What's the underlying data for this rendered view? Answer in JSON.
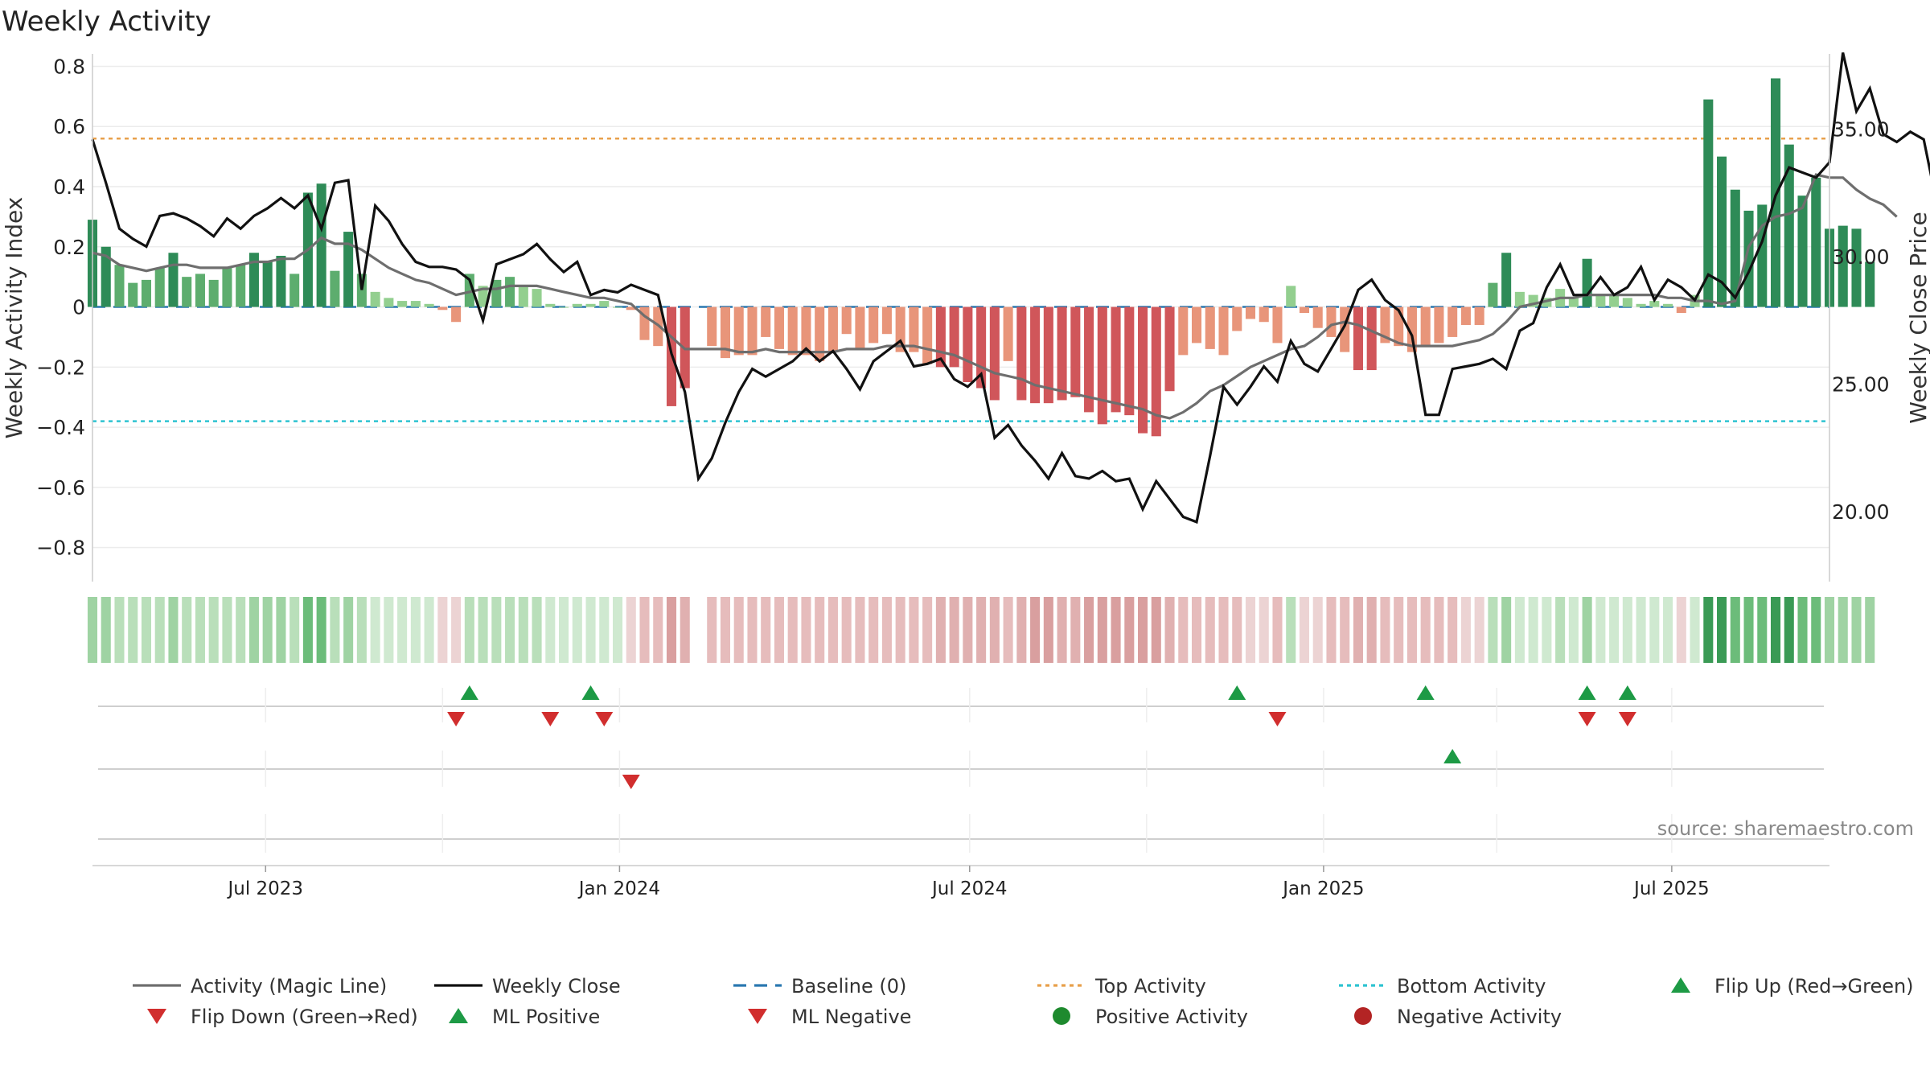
{
  "chart_data": {
    "type": "bar",
    "title": "Weekly Activity",
    "ylabel": "Weekly Activity Index",
    "y2label": "Weekly Close Price",
    "source": "source: sharemaestro.com",
    "ylim": [
      -0.9,
      0.82
    ],
    "y2lim": [
      17.42,
      37.7
    ],
    "yticks": [
      0.8,
      0.6,
      0.4,
      0.2,
      0,
      -0.2,
      -0.4,
      -0.6,
      -0.8
    ],
    "ytick_labels": [
      "0.8",
      "0.6",
      "0.4",
      "0.2",
      "0",
      "−0.2",
      "−0.4",
      "−0.6",
      "−0.8"
    ],
    "y2ticks": [
      35,
      30,
      25,
      20
    ],
    "y2tick_labels": [
      "35.00",
      "30.00",
      "25.00",
      "20.00"
    ],
    "x_start": "2023-04-02",
    "x_end": "2025-09-21",
    "xticks": [
      {
        "date": "2023-07-01",
        "label": "Jul 2023"
      },
      {
        "date": "2024-01-01",
        "label": "Jan 2024"
      },
      {
        "date": "2024-07-01",
        "label": "Jul 2024"
      },
      {
        "date": "2025-01-01",
        "label": "Jan 2025"
      },
      {
        "date": "2025-07-01",
        "label": "Jul 2025"
      }
    ],
    "weeks_start": "2023-04-02",
    "activity": [
      0.29,
      0.2,
      0.14,
      0.08,
      0.09,
      0.13,
      0.18,
      0.1,
      0.11,
      0.09,
      0.13,
      0.14,
      0.18,
      0.15,
      0.17,
      0.11,
      0.38,
      0.41,
      0.12,
      0.25,
      0.11,
      0.05,
      0.03,
      0.02,
      0.02,
      0.01,
      -0.01,
      -0.05,
      0.11,
      0.07,
      0.09,
      0.1,
      0.07,
      0.06,
      0.01,
      0,
      0.01,
      0.01,
      0.02,
      0,
      -0.01,
      -0.11,
      -0.13,
      -0.33,
      -0.27,
      null,
      -0.13,
      -0.17,
      -0.16,
      -0.16,
      -0.1,
      -0.14,
      -0.16,
      -0.16,
      -0.18,
      -0.15,
      -0.09,
      -0.14,
      -0.12,
      -0.09,
      -0.15,
      -0.15,
      -0.19,
      -0.2,
      -0.2,
      -0.25,
      -0.27,
      -0.31,
      -0.18,
      -0.31,
      -0.32,
      -0.32,
      -0.31,
      -0.3,
      -0.35,
      -0.39,
      -0.35,
      -0.36,
      -0.42,
      -0.43,
      -0.28,
      -0.16,
      -0.12,
      -0.14,
      -0.16,
      -0.08,
      -0.04,
      -0.05,
      -0.12,
      0.07,
      -0.02,
      -0.07,
      -0.1,
      -0.15,
      -0.21,
      -0.21,
      -0.12,
      -0.13,
      -0.15,
      -0.13,
      -0.12,
      -0.1,
      -0.06,
      -0.06,
      0.08,
      0.18,
      0.05,
      0.04,
      0.03,
      0.06,
      0.03,
      0.16,
      0.04,
      0.04,
      0.03,
      0.01,
      0.02,
      0.01,
      -0.02,
      0.04,
      0.69,
      0.5,
      0.39,
      0.32,
      0.34,
      0.76,
      0.54,
      0.37,
      0.43,
      0.26,
      0.27,
      0.26,
      0.15
    ],
    "magic_line": [
      0.18,
      0.17,
      0.14,
      0.13,
      0.12,
      0.13,
      0.14,
      0.14,
      0.13,
      0.13,
      0.13,
      0.14,
      0.15,
      0.15,
      0.16,
      0.16,
      0.19,
      0.23,
      0.21,
      0.21,
      0.19,
      0.16,
      0.13,
      0.11,
      0.09,
      0.08,
      0.06,
      0.04,
      0.05,
      0.06,
      0.06,
      0.07,
      0.07,
      0.07,
      0.06,
      0.05,
      0.04,
      0.03,
      0.03,
      0.02,
      0.01,
      -0.03,
      -0.06,
      -0.1,
      -0.14,
      -0.14,
      -0.14,
      -0.14,
      -0.15,
      -0.15,
      -0.14,
      -0.15,
      -0.15,
      -0.15,
      -0.15,
      -0.15,
      -0.14,
      -0.14,
      -0.14,
      -0.13,
      -0.13,
      -0.13,
      -0.14,
      -0.15,
      -0.16,
      -0.18,
      -0.2,
      -0.22,
      -0.23,
      -0.24,
      -0.26,
      -0.27,
      -0.28,
      -0.29,
      -0.3,
      -0.31,
      -0.32,
      -0.33,
      -0.34,
      -0.36,
      -0.37,
      -0.35,
      -0.32,
      -0.28,
      -0.26,
      -0.23,
      -0.2,
      -0.18,
      -0.16,
      -0.14,
      -0.13,
      -0.1,
      -0.06,
      -0.05,
      -0.06,
      -0.08,
      -0.1,
      -0.12,
      -0.13,
      -0.13,
      -0.13,
      -0.13,
      -0.12,
      -0.11,
      -0.09,
      -0.05,
      0,
      0.01,
      0.02,
      0.03,
      0.03,
      0.04,
      0.04,
      0.04,
      0.04,
      0.04,
      0.04,
      0.03,
      0.03,
      0.02,
      0.02,
      0.01,
      0.02,
      0.2,
      0.27,
      0.3,
      0.31,
      0.33,
      0.44,
      0.43,
      0.43,
      0.39,
      0.36,
      0.34,
      0.3
    ],
    "close_weeks_start": "2023-04-02",
    "weekly_close": [
      34.6,
      32.9,
      31.1,
      30.7,
      30.4,
      31.6,
      31.7,
      31.5,
      31.2,
      30.8,
      31.5,
      31.1,
      31.6,
      31.9,
      32.3,
      31.9,
      32.4,
      31.1,
      32.9,
      33.0,
      28.7,
      32.0,
      31.4,
      30.5,
      29.8,
      29.6,
      29.6,
      29.5,
      29.1,
      27.5,
      29.7,
      29.9,
      30.1,
      30.5,
      29.9,
      29.4,
      29.8,
      28.5,
      28.7,
      28.6,
      28.9,
      28.7,
      28.5,
      26.2,
      24.7,
      21.3,
      22.1,
      23.5,
      24.7,
      25.6,
      25.3,
      25.6,
      25.9,
      26.4,
      25.9,
      26.3,
      25.6,
      24.8,
      25.9,
      26.3,
      26.7,
      25.7,
      25.8,
      26.0,
      25.2,
      24.9,
      25.4,
      22.9,
      23.4,
      22.6,
      22.0,
      21.3,
      22.3,
      21.4,
      21.3,
      21.6,
      21.2,
      21.3,
      20.1,
      21.2,
      20.5,
      19.8,
      19.6,
      22.2,
      24.9,
      24.2,
      24.9,
      25.7,
      25.1,
      26.7,
      25.8,
      25.5,
      26.4,
      27.3,
      28.7,
      29.1,
      28.3,
      27.9,
      26.9,
      23.8,
      23.8,
      25.6,
      25.7,
      25.8,
      26.0,
      25.6,
      27.1,
      27.4,
      28.8,
      29.7,
      28.5,
      28.5,
      29.2,
      28.5,
      28.8,
      29.6,
      28.3,
      29.1,
      28.8,
      28.3,
      29.3,
      29.0,
      28.4,
      29.4,
      30.6,
      32.4,
      33.5,
      33.3,
      33.1,
      33.7,
      38.0,
      35.7,
      36.6,
      34.8,
      34.5,
      34.9,
      34.6,
      32.0
    ],
    "baseline": 0,
    "top_activity": 0.56,
    "bottom_activity": -0.38,
    "flip_up_row1_weeks": [
      28,
      37,
      85,
      99,
      111,
      114
    ],
    "flip_down_row1_weeks": [
      27,
      34,
      38,
      88,
      111,
      114
    ],
    "ml_positive_row2_weeks": [
      101
    ],
    "ml_negative_row2_weeks": [
      40
    ],
    "legend": [
      {
        "label": "Activity (Magic Line)",
        "kind": "line",
        "color": "#6e6e6e",
        "dash": "solid"
      },
      {
        "label": "Weekly Close",
        "kind": "line",
        "color": "#111111",
        "dash": "solid"
      },
      {
        "label": "Baseline (0)",
        "kind": "line",
        "color": "#2a78b0",
        "dash": "dashed"
      },
      {
        "label": "Top Activity",
        "kind": "line",
        "color": "#e8a04b",
        "dash": "dotted"
      },
      {
        "label": "Bottom Activity",
        "kind": "line",
        "color": "#2ec3d1",
        "dash": "dotted"
      },
      {
        "label": "Flip Up (Red→Green)",
        "kind": "triangle-up",
        "color": "#1d9a45"
      },
      {
        "label": "Flip Down (Green→Red)",
        "kind": "triangle-down",
        "color": "#d12e2e"
      },
      {
        "label": "ML Positive",
        "kind": "triangle-up",
        "color": "#1d9a45"
      },
      {
        "label": "ML Negative",
        "kind": "triangle-down",
        "color": "#d12e2e"
      },
      {
        "label": "Positive Activity",
        "kind": "circle",
        "color": "#1e8a2e"
      },
      {
        "label": "Negative Activity",
        "kind": "circle",
        "color": "#b32424"
      }
    ],
    "colors": {
      "pos_strong": "#2e8b57",
      "pos_mid": "#5dad6e",
      "pos_light": "#93cf8f",
      "neg_strong": "#d0565a",
      "neg_light": "#e8957a",
      "grid": "#ececec",
      "axis": "#cccccc"
    }
  }
}
